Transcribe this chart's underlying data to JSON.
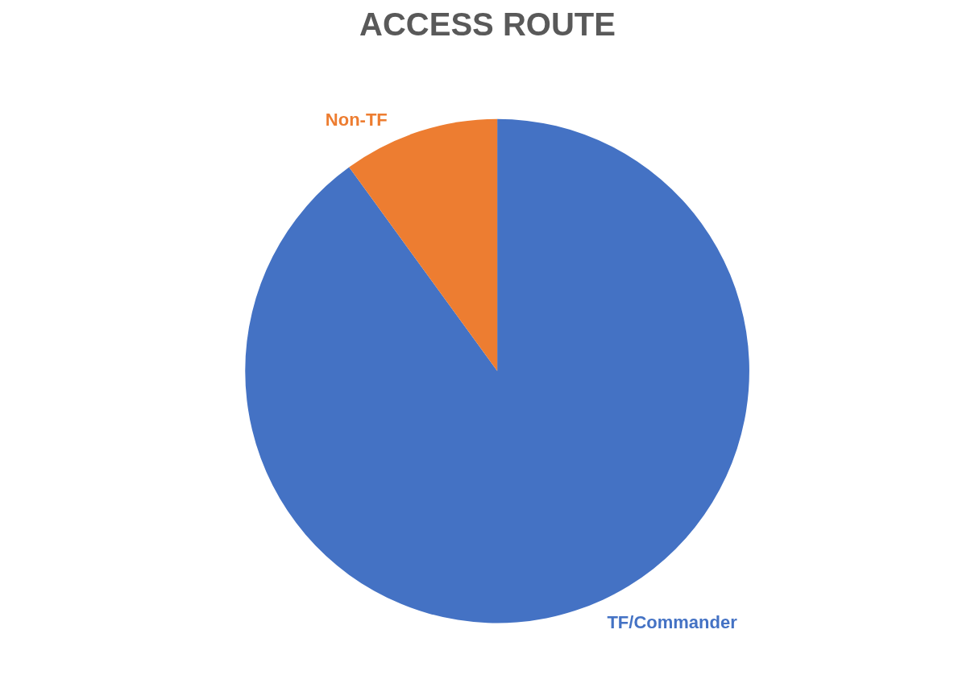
{
  "chart_data": {
    "type": "pie",
    "title": "ACCESS ROUTE",
    "categories": [
      "TF/Commander",
      "Non-TF"
    ],
    "values": [
      90,
      10
    ],
    "colors": [
      "#4472c4",
      "#ed7d31"
    ],
    "legend": false
  }
}
